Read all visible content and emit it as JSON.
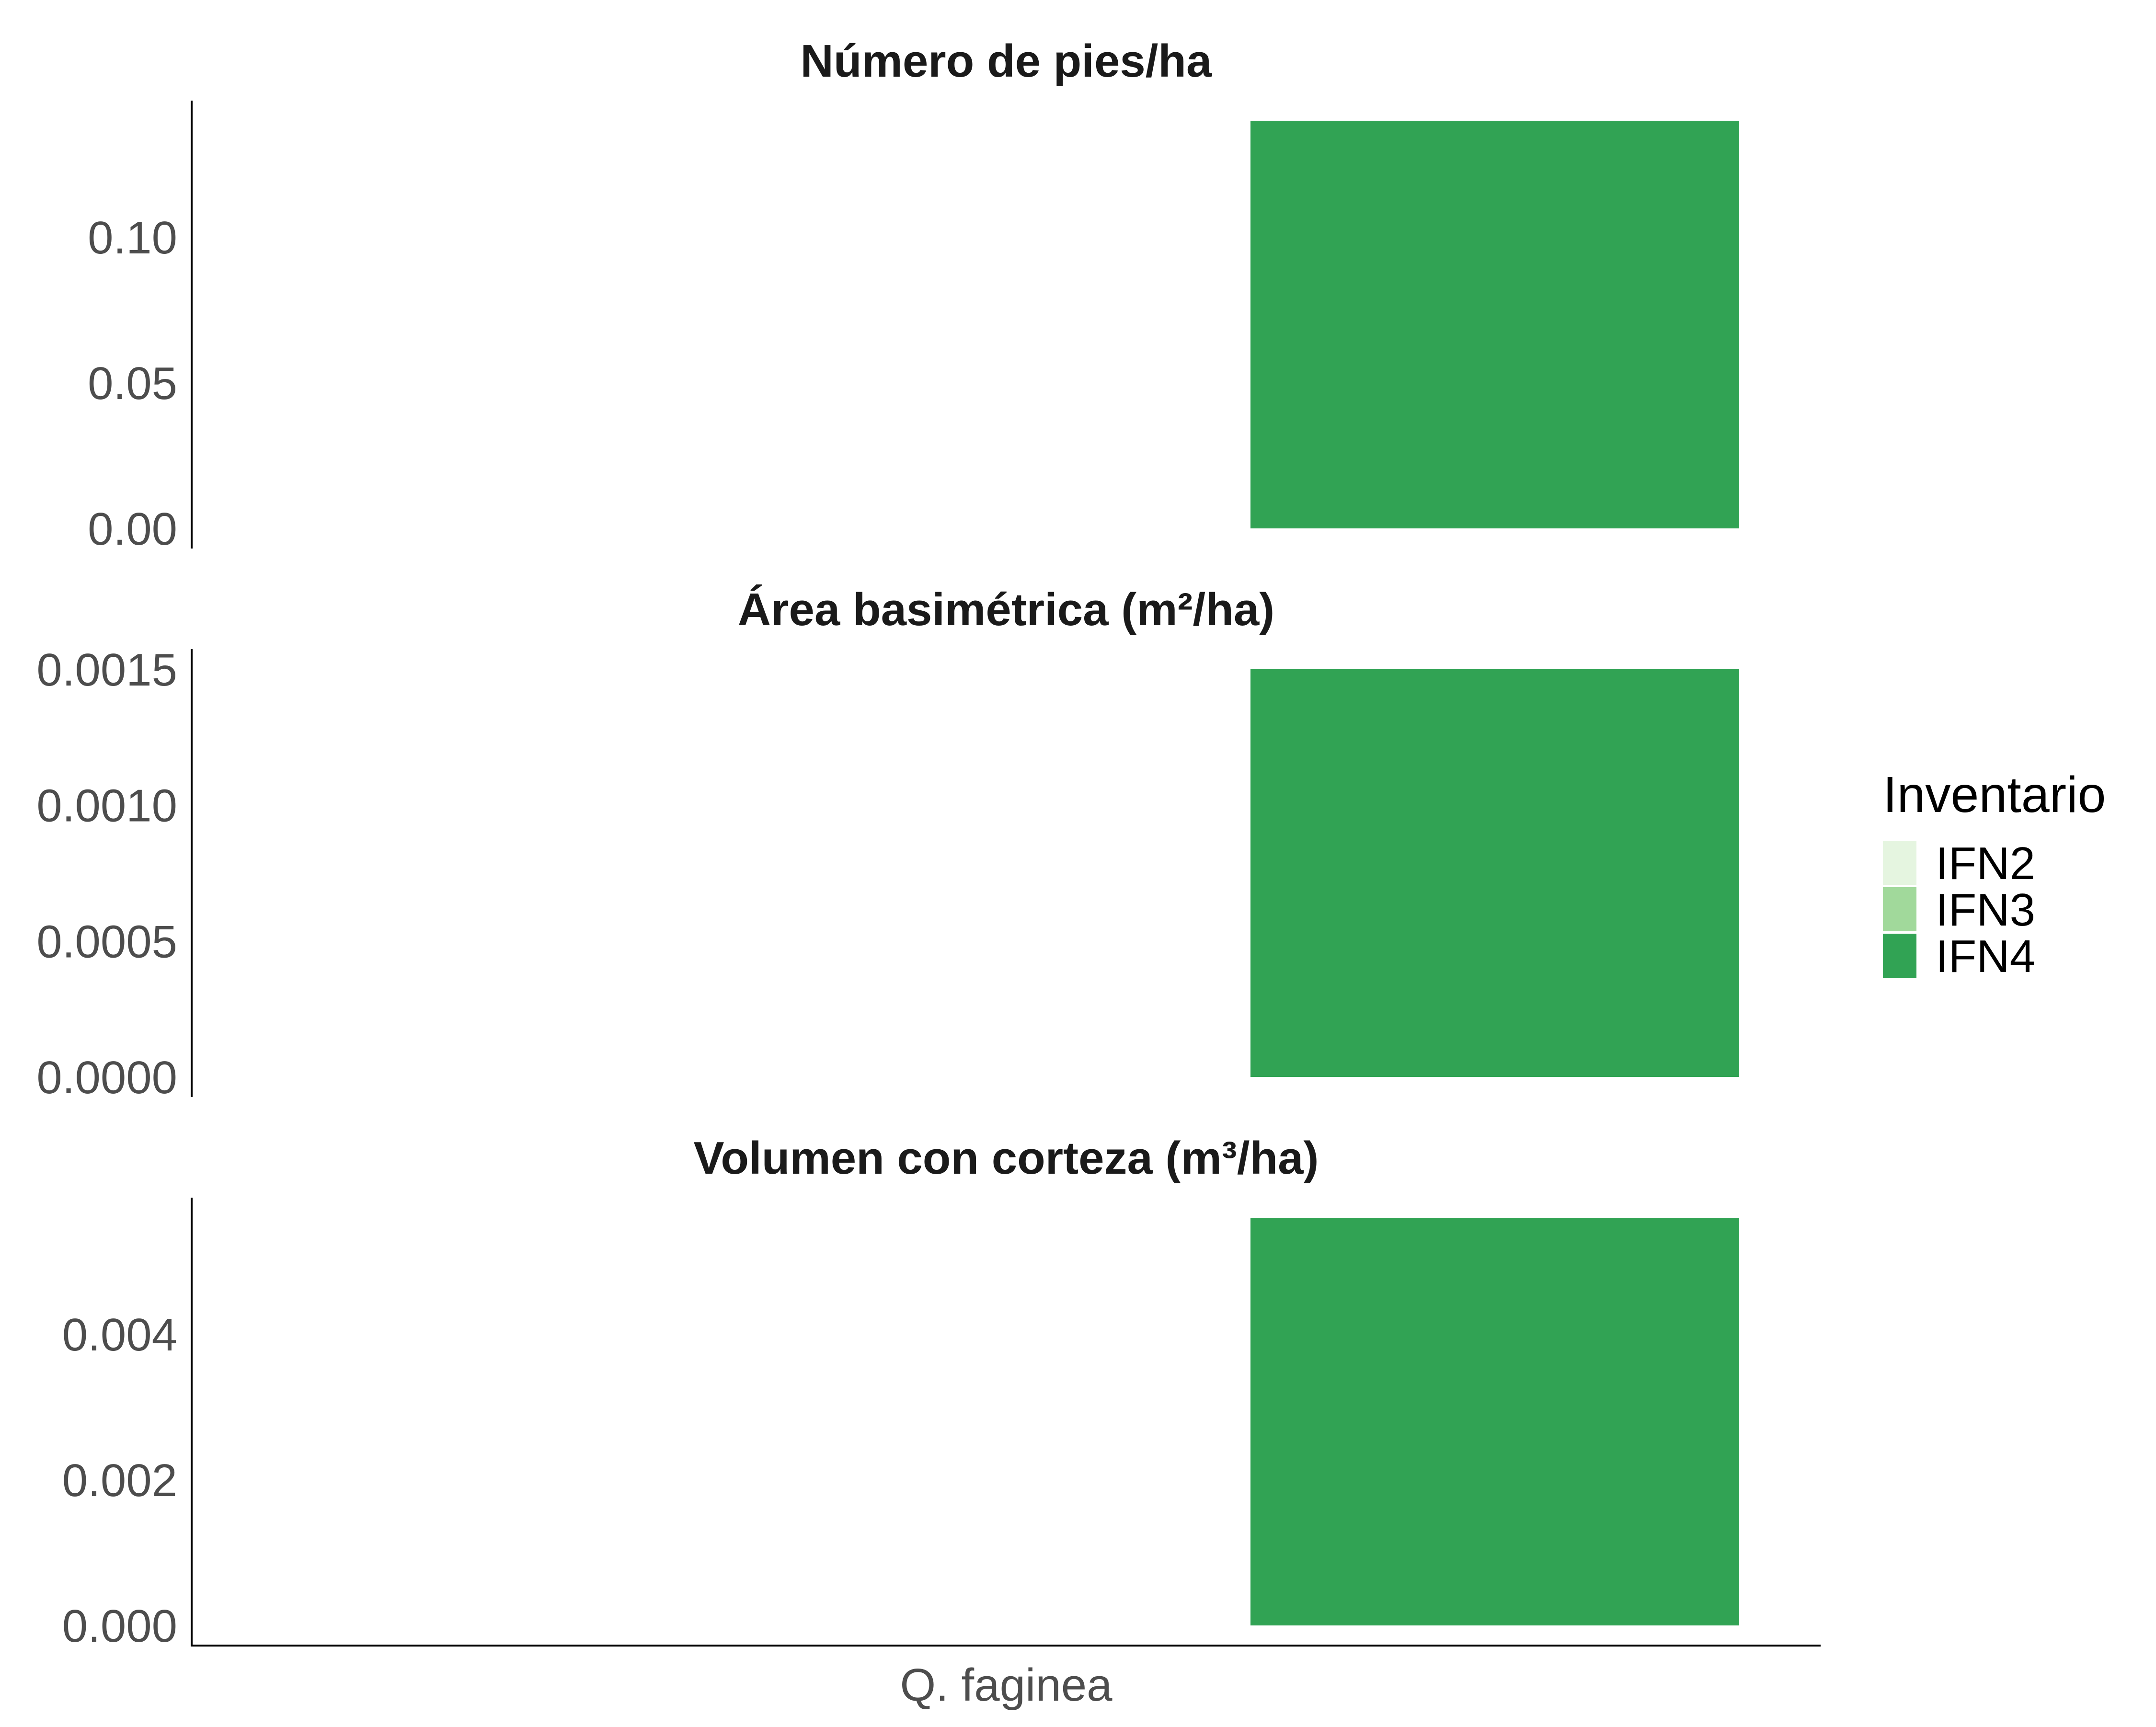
{
  "chart_data": {
    "type": "bar",
    "categories": [
      "Q. faginea"
    ],
    "legend": {
      "title": "Inventario",
      "placement": "right",
      "entries": [
        {
          "label": "IFN2",
          "color": "#e5f5e0"
        },
        {
          "label": "IFN3",
          "color": "#a1d99b"
        },
        {
          "label": "IFN4",
          "color": "#31a354"
        }
      ]
    },
    "panels": [
      {
        "title": "Número de pies/ha",
        "ylim": [
          0,
          0.14
        ],
        "yticks": [
          0.0,
          0.05,
          0.1
        ],
        "yticklabels": [
          "0.00",
          "0.05",
          "0.10"
        ],
        "series": [
          {
            "name": "IFN2",
            "values": [
              0
            ]
          },
          {
            "name": "IFN3",
            "values": [
              0
            ]
          },
          {
            "name": "IFN4",
            "values": [
              0.14
            ]
          }
        ]
      },
      {
        "title": "Área basimétrica (m²/ha)",
        "ylim": [
          0,
          0.0015
        ],
        "yticks": [
          0.0,
          0.0005,
          0.001,
          0.0015
        ],
        "yticklabels": [
          "0.0000",
          "0.0005",
          "0.0010",
          "0.0015"
        ],
        "series": [
          {
            "name": "IFN2",
            "values": [
              0
            ]
          },
          {
            "name": "IFN3",
            "values": [
              0
            ]
          },
          {
            "name": "IFN4",
            "values": [
              0.0015
            ]
          }
        ]
      },
      {
        "title": "Volumen con corteza (m³/ha)",
        "ylim": [
          0,
          0.0056
        ],
        "yticks": [
          0.0,
          0.002,
          0.004
        ],
        "yticklabels": [
          "0.000",
          "0.002",
          "0.004"
        ],
        "series": [
          {
            "name": "IFN2",
            "values": [
              0
            ]
          },
          {
            "name": "IFN3",
            "values": [
              0
            ]
          },
          {
            "name": "IFN4",
            "values": [
              0.0056
            ]
          }
        ]
      }
    ],
    "grid": false
  }
}
